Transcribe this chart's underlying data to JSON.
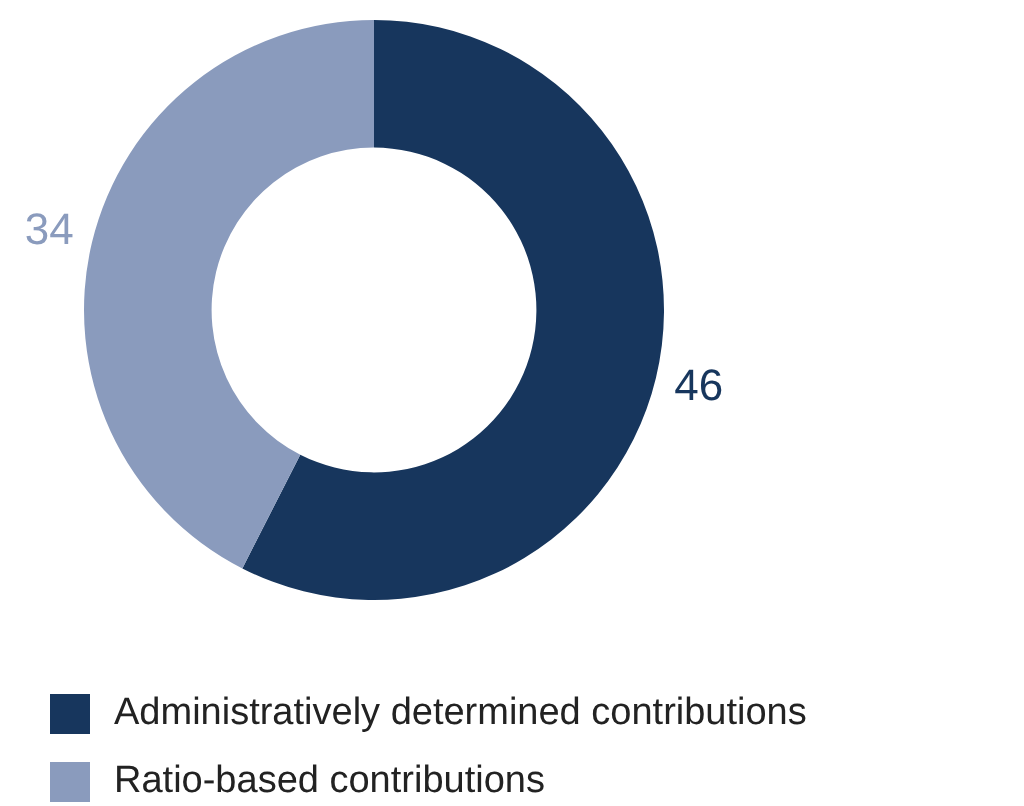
{
  "chart_data": {
    "type": "donut",
    "categories": [
      "Administratively determined contributions",
      "Ratio-based contributions"
    ],
    "values": [
      46,
      34
    ],
    "colors": [
      "#17365d",
      "#8a9bbd"
    ],
    "data_labels": true,
    "legend": "bottom"
  }
}
